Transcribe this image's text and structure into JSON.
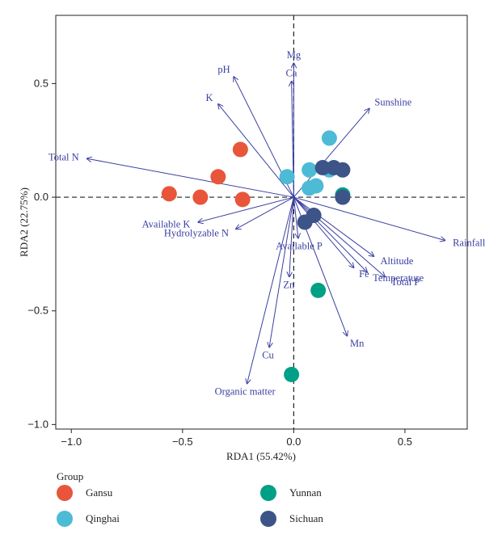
{
  "chart_data": {
    "type": "scatter",
    "xlabel": "RDA1 (55.42%)",
    "ylabel": "RDA2 (22.75%)",
    "xlim": [
      -1.07,
      0.78
    ],
    "ylim": [
      -1.02,
      0.8
    ],
    "xticks": [
      -1.0,
      -0.5,
      0.0,
      0.5
    ],
    "xtick_labels": [
      "−1.0",
      "−0.5",
      "0.0",
      "0.5"
    ],
    "yticks": [
      -1.0,
      -0.5,
      0.0,
      0.5
    ],
    "ytick_labels": [
      "−1.0",
      "−0.5",
      "0.0",
      "0.5"
    ],
    "reference_lines": {
      "x": 0,
      "y": 0,
      "style": "dashed"
    },
    "legend": {
      "title": "Group",
      "placement": "bottom"
    },
    "series": [
      {
        "name": "Gansu",
        "color": "#e8553a",
        "points": [
          [
            -0.56,
            0.015
          ],
          [
            -0.42,
            0.0
          ],
          [
            -0.34,
            0.09
          ],
          [
            -0.24,
            0.21
          ],
          [
            -0.23,
            -0.01
          ]
        ]
      },
      {
        "name": "Qinghai",
        "color": "#4dbbd5",
        "points": [
          [
            -0.03,
            0.09
          ],
          [
            0.07,
            0.04
          ],
          [
            0.1,
            0.05
          ],
          [
            0.07,
            0.12
          ],
          [
            0.16,
            0.26
          ],
          [
            0.16,
            0.12
          ]
        ]
      },
      {
        "name": "Yunnan",
        "color": "#00a087",
        "points": [
          [
            0.22,
            0.01
          ],
          [
            0.11,
            -0.41
          ],
          [
            -0.01,
            -0.78
          ]
        ]
      },
      {
        "name": "Sichuan",
        "color": "#3c5488",
        "points": [
          [
            0.13,
            0.13
          ],
          [
            0.18,
            0.13
          ],
          [
            0.22,
            0.12
          ],
          [
            0.22,
            0.0
          ],
          [
            0.09,
            -0.08
          ],
          [
            0.05,
            -0.11
          ]
        ]
      }
    ],
    "vectors": [
      {
        "label": "Mg",
        "x": 0.0,
        "y": 0.59
      },
      {
        "label": "Ca",
        "x": -0.01,
        "y": 0.51
      },
      {
        "label": "pH",
        "x": -0.27,
        "y": 0.53
      },
      {
        "label": "K",
        "x": -0.34,
        "y": 0.41
      },
      {
        "label": "Total N",
        "x": -0.93,
        "y": 0.17
      },
      {
        "label": "Available K",
        "x": -0.43,
        "y": -0.11
      },
      {
        "label": "Hydrolyzable N",
        "x": -0.26,
        "y": -0.14
      },
      {
        "label": "Sunshine",
        "x": 0.34,
        "y": 0.39
      },
      {
        "label": "Rainfall",
        "x": 0.68,
        "y": -0.19
      },
      {
        "label": "Altitude",
        "x": 0.36,
        "y": -0.26
      },
      {
        "label": "Total P",
        "x": 0.41,
        "y": -0.35
      },
      {
        "label": "Temperature",
        "x": 0.33,
        "y": -0.33
      },
      {
        "label": "Fe",
        "x": 0.27,
        "y": -0.31
      },
      {
        "label": "Available P",
        "x": 0.02,
        "y": -0.18
      },
      {
        "label": "Zn",
        "x": -0.02,
        "y": -0.35
      },
      {
        "label": "Mn",
        "x": 0.24,
        "y": -0.61
      },
      {
        "label": "Cu",
        "x": -0.11,
        "y": -0.66
      },
      {
        "label": "Organic matter",
        "x": -0.21,
        "y": -0.82
      }
    ]
  }
}
